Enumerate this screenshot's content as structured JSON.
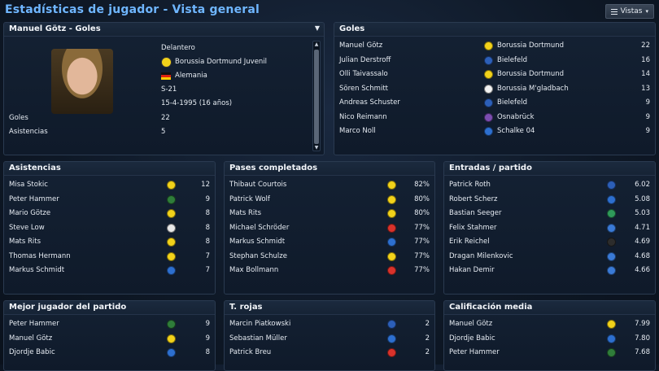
{
  "header": {
    "title": "Estadísticas de jugador - Vista general",
    "vistas_label": "Vistas"
  },
  "profile": {
    "title": "Manuel Götz - Goles",
    "position": "Delantero",
    "club": "Borussia Dortmund Juvenil",
    "club_icon_color": "#f2d21a",
    "nation": "Alemania",
    "squad": "S-21",
    "born": "15-4-1995 (16 años)",
    "goals_label": "Goles",
    "goals": "22",
    "assists_label": "Asistencias",
    "assists": "5"
  },
  "goles": {
    "title": "Goles",
    "rows": [
      {
        "name": "Manuel Götz",
        "club": "Borussia Dortmund",
        "value": "22",
        "color": "#f2d21a"
      },
      {
        "name": "Julian Derstroff",
        "club": "Bielefeld",
        "value": "16",
        "color": "#2c5fb8"
      },
      {
        "name": "Olli Taivassalo",
        "club": "Borussia Dortmund",
        "value": "14",
        "color": "#f2d21a"
      },
      {
        "name": "Sören Schmitt",
        "club": "Borussia M'gladbach",
        "value": "13",
        "color": "#f2f2f2"
      },
      {
        "name": "Andreas Schuster",
        "club": "Bielefeld",
        "value": "9",
        "color": "#2c5fb8"
      },
      {
        "name": "Nico Reimann",
        "club": "Osnabrück",
        "value": "9",
        "color": "#7b4db0"
      },
      {
        "name": "Marco Noll",
        "club": "Schalke 04",
        "value": "9",
        "color": "#2d6fcf"
      }
    ]
  },
  "asistencias": {
    "title": "Asistencias",
    "rows": [
      {
        "name": "Misa Stokic",
        "value": "12",
        "color": "#f2d21a"
      },
      {
        "name": "Peter Hammer",
        "value": "9",
        "color": "#2f7d3a"
      },
      {
        "name": "Mario Götze",
        "value": "8",
        "color": "#f2d21a"
      },
      {
        "name": "Steve Low",
        "value": "8",
        "color": "#e8e8e8"
      },
      {
        "name": "Mats Rits",
        "value": "8",
        "color": "#f2d21a"
      },
      {
        "name": "Thomas Hermann",
        "value": "7",
        "color": "#f2d21a"
      },
      {
        "name": "Markus Schmidt",
        "value": "7",
        "color": "#2d6fcf"
      }
    ]
  },
  "pases": {
    "title": "Pases completados",
    "rows": [
      {
        "name": "Thibaut Courtois",
        "value": "82%",
        "color": "#f2d21a"
      },
      {
        "name": "Patrick Wolf",
        "value": "80%",
        "color": "#f2d21a"
      },
      {
        "name": "Mats Rits",
        "value": "80%",
        "color": "#f2d21a"
      },
      {
        "name": "Michael Schröder",
        "value": "77%",
        "color": "#d9322b"
      },
      {
        "name": "Markus Schmidt",
        "value": "77%",
        "color": "#2d6fcf"
      },
      {
        "name": "Stephan Schulze",
        "value": "77%",
        "color": "#f2d21a"
      },
      {
        "name": "Max Bollmann",
        "value": "77%",
        "color": "#d9322b"
      }
    ]
  },
  "entradas": {
    "title": "Entradas / partido",
    "rows": [
      {
        "name": "Patrick Roth",
        "value": "6.02",
        "color": "#2c5fb8"
      },
      {
        "name": "Robert Scherz",
        "value": "5.08",
        "color": "#2d6fcf"
      },
      {
        "name": "Bastian Seeger",
        "value": "5.03",
        "color": "#2f9a5a"
      },
      {
        "name": "Felix Stahmer",
        "value": "4.71",
        "color": "#3a7ad6"
      },
      {
        "name": "Erik Reichel",
        "value": "4.69",
        "color": "#2c2c2c"
      },
      {
        "name": "Dragan Milenkovic",
        "value": "4.68",
        "color": "#3a7ad6"
      },
      {
        "name": "Hakan Demir",
        "value": "4.66",
        "color": "#3a7ad6"
      }
    ]
  },
  "mejor": {
    "title": "Mejor jugador del partido",
    "rows": [
      {
        "name": "Peter Hammer",
        "value": "9",
        "color": "#2f7d3a"
      },
      {
        "name": "Manuel Götz",
        "value": "9",
        "color": "#f2d21a"
      },
      {
        "name": "Djordje Babic",
        "value": "8",
        "color": "#2d6fcf"
      }
    ]
  },
  "rojas": {
    "title": "T. rojas",
    "rows": [
      {
        "name": "Marcin Piatkowski",
        "value": "2",
        "color": "#2c5fb8"
      },
      {
        "name": "Sebastian Müller",
        "value": "2",
        "color": "#2d6fcf"
      },
      {
        "name": "Patrick Breu",
        "value": "2",
        "color": "#d9322b"
      }
    ]
  },
  "calificacion": {
    "title": "Calificación media",
    "rows": [
      {
        "name": "Manuel Götz",
        "value": "7.99",
        "color": "#f2d21a"
      },
      {
        "name": "Djordje Babic",
        "value": "7.80",
        "color": "#2d6fcf"
      },
      {
        "name": "Peter Hammer",
        "value": "7.68",
        "color": "#2f7d3a"
      }
    ]
  }
}
